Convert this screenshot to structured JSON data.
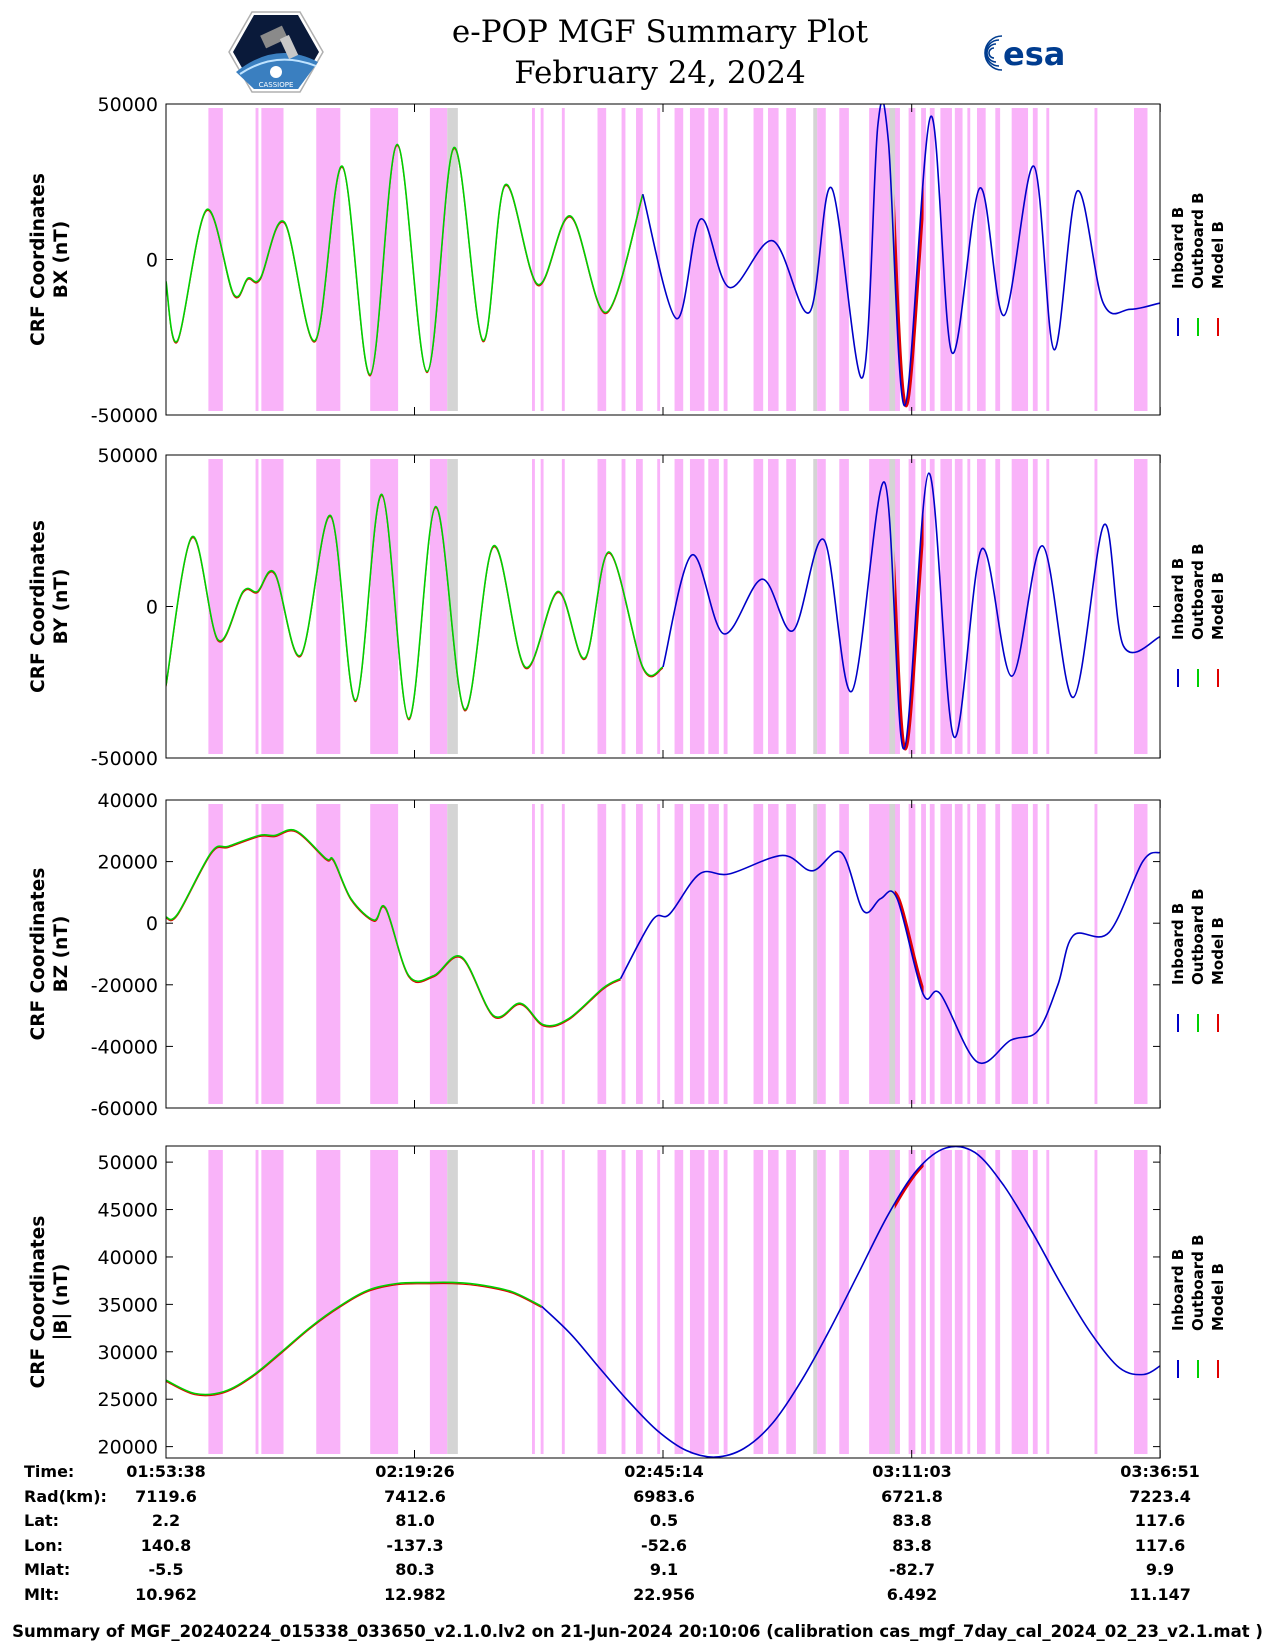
{
  "header": {
    "title": "e-POP MGF Summary Plot",
    "date": "February 24, 2024",
    "left_logo_text": "CASSIOPE",
    "right_logo_text": "esa"
  },
  "colors": {
    "inboard": "#0000c8",
    "outboard": "#00d000",
    "model": "#e00000",
    "band_magenta": "#f9b3f9",
    "band_gray": "#d4d4d4"
  },
  "legend": [
    "Inboard B",
    "Outboard B",
    "Model B"
  ],
  "x_ticks": [
    "01:53:38",
    "02:19:26",
    "02:45:14",
    "03:11:03",
    "03:36:51"
  ],
  "ephemeris": {
    "labels": [
      "Time:",
      "Rad(km):",
      "Lat:",
      "Lon:",
      "Mlat:",
      "Mlt:"
    ],
    "rows": [
      [
        "01:53:38",
        "02:19:26",
        "02:45:14",
        "03:11:03",
        "03:36:51"
      ],
      [
        "7119.6",
        "7412.6",
        "6983.6",
        "6721.8",
        "7223.4"
      ],
      [
        "2.2",
        "81.0",
        "0.5",
        "83.8",
        "117.6"
      ],
      [
        "140.8",
        "-137.3",
        "-52.6",
        "83.8",
        "117.6"
      ],
      [
        "-5.5",
        "80.3",
        "9.1",
        "-82.7",
        "9.9"
      ],
      [
        "10.962",
        "12.982",
        "22.956",
        "6.492",
        "11.147"
      ]
    ]
  },
  "footer": "Summary of MGF_20240224_015338_033650_v2.1.0.lv2 on 21-Jun-2024 20:10:06 (calibration cas_mgf_7day_cal_2024_02_23_v2.1.mat )",
  "chart_data": {
    "type": "line",
    "x_range_minutes": [
      0,
      103.2
    ],
    "x_tick_minutes": [
      0,
      25.8,
      51.6,
      77.42,
      103.22
    ],
    "model_highlight_minutes": [
      75.5,
      78.5
    ],
    "handover_minute": 47.5,
    "shaded_intervals_minutes": {
      "magenta": [
        [
          4.4,
          5.9
        ],
        [
          9.3,
          9.6
        ],
        [
          9.9,
          12.2
        ],
        [
          15.6,
          18.1
        ],
        [
          21.2,
          24.1
        ],
        [
          27.4,
          29.2
        ],
        [
          38.0,
          38.3
        ],
        [
          38.9,
          39.2
        ],
        [
          41.1,
          41.4
        ],
        [
          44.8,
          45.7
        ],
        [
          47.3,
          47.7
        ],
        [
          48.8,
          49.5
        ],
        [
          51.0,
          51.3
        ],
        [
          52.8,
          53.7
        ],
        [
          54.4,
          55.9
        ],
        [
          56.3,
          57.4
        ],
        [
          57.9,
          58.3
        ],
        [
          61.0,
          62.0
        ],
        [
          62.5,
          63.6
        ],
        [
          64.4,
          65.4
        ],
        [
          67.6,
          68.5
        ],
        [
          69.9,
          70.9
        ],
        [
          73.0,
          76.2
        ],
        [
          77.1,
          77.8
        ],
        [
          78.4,
          78.9
        ],
        [
          79.3,
          79.8
        ],
        [
          80.4,
          81.6
        ],
        [
          81.9,
          82.7
        ],
        [
          83.2,
          83.5
        ],
        [
          84.2,
          85.1
        ],
        [
          86.1,
          86.6
        ],
        [
          87.8,
          89.5
        ],
        [
          90.0,
          90.5
        ],
        [
          91.4,
          91.7
        ],
        [
          96.4,
          96.7
        ],
        [
          100.5,
          101.9
        ]
      ],
      "gray": [
        [
          29.2,
          30.3
        ],
        [
          67.2,
          67.6
        ],
        [
          75.1,
          75.7
        ]
      ]
    },
    "panels": [
      {
        "key": "bx",
        "ylabel": [
          "CRF Coordinates",
          "BX (nT)"
        ],
        "ylim": [
          -50000,
          50000
        ],
        "yticks": [
          "50000",
          "0",
          "-50000"
        ],
        "series": [
          {
            "name": "Outboard B",
            "x": [
              0,
              1.2,
              4.2,
              7.0,
              8.5,
              9.8,
              12.3,
              15.5,
              18.3,
              21.2,
              24.0,
              27.1,
              29.9,
              32.9,
              35.2,
              38.6,
              42.0,
              45.7,
              49.5
            ],
            "y": [
              -7000,
              -26000,
              16000,
              -11000,
              -6000,
              -6000,
              12000,
              -26000,
              30000,
              -37000,
              37000,
              -36000,
              36000,
              -26000,
              24000,
              -8000,
              14000,
              -17000,
              21000
            ]
          },
          {
            "name": "Inboard B",
            "x": [
              49.5,
              53.0,
              55.5,
              58.5,
              63.0,
              66.8,
              69.1,
              72.3,
              73.9,
              75.0,
              76.7,
              79.4,
              81.6,
              84.5,
              87.0,
              90.1,
              92.2,
              94.6,
              97.3,
              100.1,
              103.2
            ],
            "y": [
              21000,
              -19000,
              13000,
              -9000,
              6000,
              -17000,
              23000,
              -38000,
              43000,
              38000,
              -47000,
              46000,
              -30000,
              23000,
              -18000,
              30000,
              -29000,
              22000,
              -14000,
              -16000,
              -14000
            ]
          }
        ]
      },
      {
        "key": "by",
        "ylabel": [
          "CRF Coordinates",
          "BY (nT)"
        ],
        "ylim": [
          -50000,
          50000
        ],
        "yticks": [
          "50000",
          "0",
          "-50000"
        ],
        "series": [
          {
            "name": "Outboard B",
            "x": [
              0,
              2.7,
              5.4,
              8.0,
              9.5,
              11.3,
              14.0,
              17.1,
              19.7,
              22.4,
              25.2,
              28.0,
              31.0,
              34.0,
              37.3,
              40.7,
              43.5,
              46.0,
              49.5,
              51.6
            ],
            "y": [
              -26000,
              23000,
              -11000,
              5000,
              5000,
              11000,
              -16000,
              30000,
              -31000,
              37000,
              -37000,
              33000,
              -34000,
              20000,
              -20000,
              5000,
              -17000,
              18000,
              -20000,
              -20000
            ]
          },
          {
            "name": "Inboard B",
            "x": [
              51.6,
              54.6,
              57.9,
              61.9,
              65.1,
              68.3,
              71.2,
              74.6,
              76.6,
              79.2,
              81.8,
              84.7,
              87.8,
              91.0,
              94.2,
              97.4,
              99.4,
              103.2
            ],
            "y": [
              -20000,
              17000,
              -9000,
              9000,
              -8000,
              22000,
              -28000,
              41000,
              -47000,
              44000,
              -43000,
              19000,
              -23000,
              20000,
              -30000,
              27000,
              -13000,
              -10000
            ]
          }
        ]
      },
      {
        "key": "bz",
        "ylabel": [
          "CRF Coordinates",
          "BZ (nT)"
        ],
        "ylim": [
          -60000,
          40000
        ],
        "yticks": [
          "40000",
          "20000",
          "0",
          "-20000",
          "-40000",
          "-60000"
        ],
        "series": [
          {
            "name": "Outboard B",
            "x": [
              0,
              1.2,
              4.7,
              6.5,
              9.7,
              11.3,
              13.5,
              16.6,
              17.4,
              19.2,
              21.6,
              22.8,
              25.2,
              27.8,
              30.7,
              34.0,
              36.8,
              39.2,
              41.8,
              45.4,
              47.2
            ],
            "y": [
              2000,
              3000,
              23000,
              25000,
              28500,
              28500,
              30000,
              21000,
              20500,
              8000,
              1000,
              5000,
              -17000,
              -17000,
              -11000,
              -30000,
              -26000,
              -33000,
              -31000,
              -21000,
              -18000
            ]
          },
          {
            "name": "Inboard B",
            "x": [
              47.2,
              50.5,
              52.3,
              55.4,
              58.5,
              64.0,
              67.1,
              70.1,
              72.4,
              74.2,
              75.9,
              78.6,
              80.4,
              84.2,
              87.7,
              90.5,
              92.6,
              94.2,
              97.9,
              101.4,
              103.2
            ],
            "y": [
              -18000,
              1000,
              3000,
              16000,
              16000,
              22000,
              17000,
              23000,
              4000,
              8000,
              8000,
              -23000,
              -23000,
              -45000,
              -38000,
              -35000,
              -20000,
              -4000,
              -3000,
              20000,
              23000
            ]
          }
        ]
      },
      {
        "key": "bmag",
        "ylabel": [
          "CRF Coordinates",
          "|B| (nT)"
        ],
        "ylim": [
          18800,
          51700
        ],
        "yticks": [
          "50000",
          "45000",
          "40000",
          "35000",
          "30000",
          "25000",
          "20000"
        ],
        "series": [
          {
            "name": "Outboard B",
            "x": [
              0,
              3.0,
              6.0,
              9.0,
              12.0,
              15.0,
              18.0,
              21.0,
              24.0,
              27.0,
              30.0,
              33.0,
              36.0,
              39.0
            ],
            "y": [
              27000,
              25600,
              25800,
              27500,
              30000,
              32600,
              34800,
              36500,
              37200,
              37300,
              37300,
              37000,
              36300,
              34800
            ]
          },
          {
            "name": "Inboard B",
            "x": [
              39.0,
              42.0,
              45.0,
              48.0,
              51.0,
              54.0,
              57.0,
              60.0,
              63.0,
              66.0,
              69.0,
              72.0,
              75.0,
              78.0,
              81.0,
              84.0,
              87.0,
              90.0,
              93.0,
              96.0,
              99.0,
              101.5,
              103.2
            ],
            "y": [
              34800,
              31900,
              28300,
              24800,
              21700,
              19600,
              18900,
              19800,
              22500,
              27000,
              32500,
              38500,
              44500,
              49200,
              51500,
              51000,
              47500,
              42500,
              37000,
              32000,
              28300,
              27600,
              28500
            ]
          }
        ]
      }
    ]
  }
}
